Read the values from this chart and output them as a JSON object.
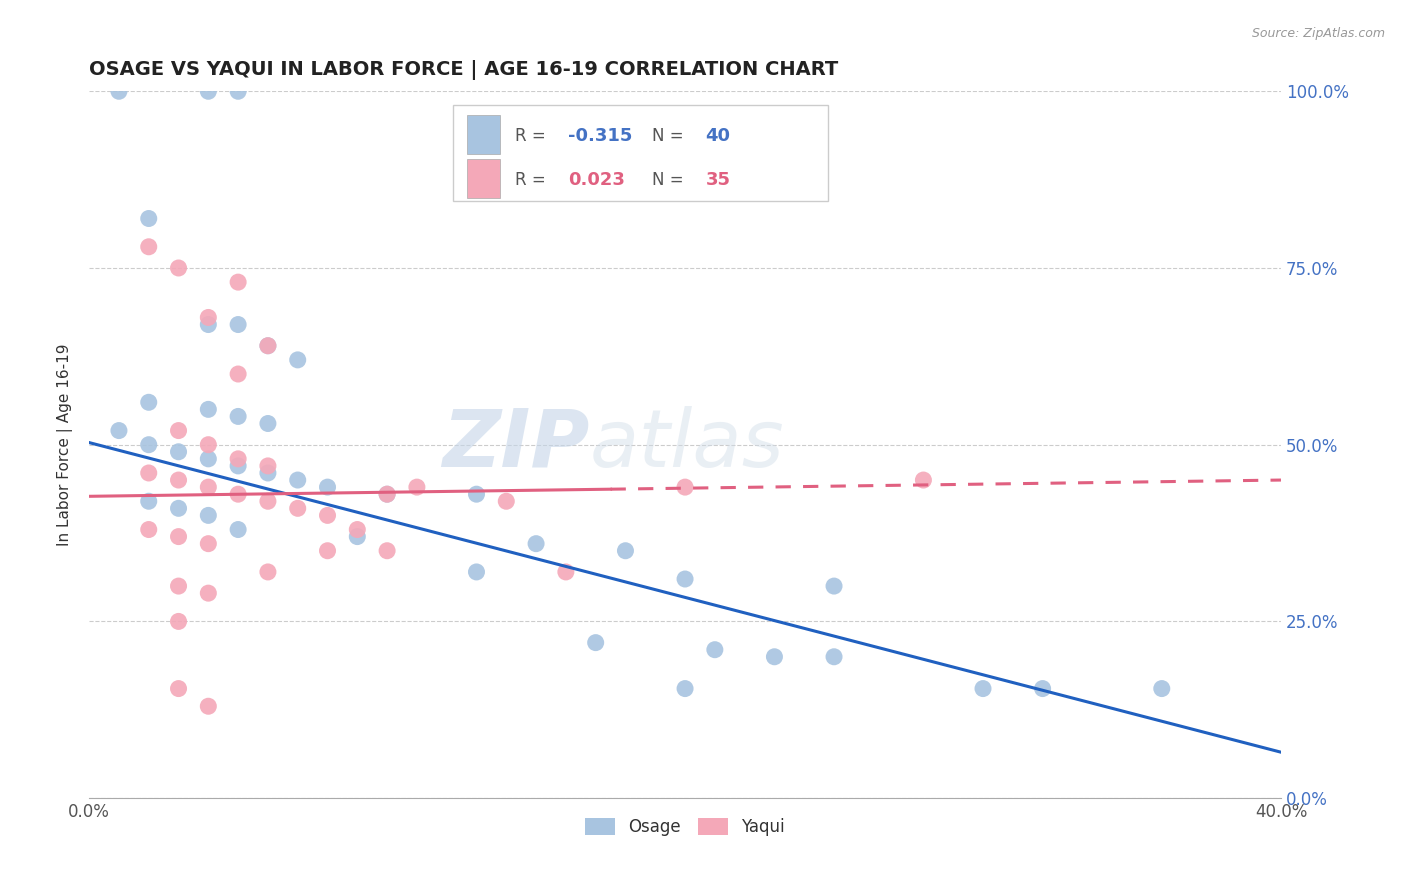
{
  "title": "OSAGE VS YAQUI IN LABOR FORCE | AGE 16-19 CORRELATION CHART",
  "source_text": "Source: ZipAtlas.com",
  "ylabel": "In Labor Force | Age 16-19",
  "xlim": [
    0.0,
    0.4
  ],
  "ylim": [
    0.0,
    1.0
  ],
  "xticks_show": [
    0.0,
    0.4
  ],
  "xticklabels_show": [
    "0.0%",
    "40.0%"
  ],
  "yticks": [
    0.0,
    0.25,
    0.5,
    0.75,
    1.0
  ],
  "yticklabels": [
    "0.0%",
    "25.0%",
    "50.0%",
    "75.0%",
    "100.0%"
  ],
  "osage_color": "#a8c4e0",
  "yaqui_color": "#f4a8b8",
  "osage_line_color": "#2060c0",
  "yaqui_line_color": "#e06080",
  "osage_r": -0.315,
  "osage_n": 40,
  "yaqui_r": 0.023,
  "yaqui_n": 35,
  "watermark_zip": "ZIP",
  "watermark_atlas": "atlas",
  "osage_data": [
    [
      0.01,
      1.0
    ],
    [
      0.04,
      1.0
    ],
    [
      0.05,
      1.0
    ],
    [
      0.02,
      0.82
    ],
    [
      0.04,
      0.67
    ],
    [
      0.05,
      0.67
    ],
    [
      0.06,
      0.64
    ],
    [
      0.07,
      0.62
    ],
    [
      0.02,
      0.56
    ],
    [
      0.04,
      0.55
    ],
    [
      0.05,
      0.54
    ],
    [
      0.06,
      0.53
    ],
    [
      0.01,
      0.52
    ],
    [
      0.02,
      0.5
    ],
    [
      0.03,
      0.49
    ],
    [
      0.04,
      0.48
    ],
    [
      0.05,
      0.47
    ],
    [
      0.06,
      0.46
    ],
    [
      0.07,
      0.45
    ],
    [
      0.08,
      0.44
    ],
    [
      0.1,
      0.43
    ],
    [
      0.13,
      0.43
    ],
    [
      0.02,
      0.42
    ],
    [
      0.03,
      0.41
    ],
    [
      0.04,
      0.4
    ],
    [
      0.05,
      0.38
    ],
    [
      0.09,
      0.37
    ],
    [
      0.15,
      0.36
    ],
    [
      0.18,
      0.35
    ],
    [
      0.13,
      0.32
    ],
    [
      0.2,
      0.31
    ],
    [
      0.25,
      0.3
    ],
    [
      0.17,
      0.22
    ],
    [
      0.21,
      0.21
    ],
    [
      0.23,
      0.2
    ],
    [
      0.2,
      0.155
    ],
    [
      0.25,
      0.2
    ],
    [
      0.3,
      0.155
    ],
    [
      0.32,
      0.155
    ],
    [
      0.36,
      0.155
    ]
  ],
  "yaqui_data": [
    [
      0.02,
      0.78
    ],
    [
      0.03,
      0.75
    ],
    [
      0.05,
      0.73
    ],
    [
      0.04,
      0.68
    ],
    [
      0.06,
      0.64
    ],
    [
      0.05,
      0.6
    ],
    [
      0.03,
      0.52
    ],
    [
      0.04,
      0.5
    ],
    [
      0.05,
      0.48
    ],
    [
      0.06,
      0.47
    ],
    [
      0.02,
      0.46
    ],
    [
      0.03,
      0.45
    ],
    [
      0.04,
      0.44
    ],
    [
      0.05,
      0.43
    ],
    [
      0.06,
      0.42
    ],
    [
      0.07,
      0.41
    ],
    [
      0.08,
      0.4
    ],
    [
      0.1,
      0.43
    ],
    [
      0.11,
      0.44
    ],
    [
      0.02,
      0.38
    ],
    [
      0.03,
      0.37
    ],
    [
      0.04,
      0.36
    ],
    [
      0.08,
      0.35
    ],
    [
      0.1,
      0.35
    ],
    [
      0.03,
      0.3
    ],
    [
      0.04,
      0.29
    ],
    [
      0.03,
      0.155
    ],
    [
      0.04,
      0.13
    ],
    [
      0.2,
      0.44
    ],
    [
      0.28,
      0.45
    ],
    [
      0.03,
      0.25
    ],
    [
      0.06,
      0.32
    ],
    [
      0.09,
      0.38
    ],
    [
      0.14,
      0.42
    ],
    [
      0.16,
      0.32
    ]
  ],
  "osage_line_x": [
    0.0,
    0.4
  ],
  "osage_line_y": [
    0.503,
    0.065
  ],
  "yaqui_line_x": [
    0.0,
    0.4
  ],
  "yaqui_line_y": [
    0.427,
    0.45
  ],
  "yaqui_line_dash_start": 0.175,
  "grid_color": "#cccccc",
  "grid_linestyle": "--",
  "legend_r_labels": [
    "R = -0.315   N = 40",
    "R =  0.023   N = 35"
  ]
}
